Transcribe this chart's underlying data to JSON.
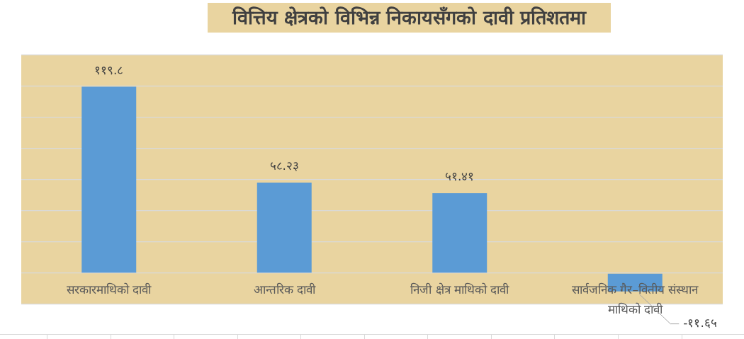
{
  "chart_data": {
    "type": "bar",
    "title": "वित्तिय क्षेत्रको विभिन्न निकायसँगको दावी प्रतिशतमा",
    "categories": [
      "सरकारमाथिको दावी",
      "आन्तरिक दावी",
      "निजी क्षेत्र माथिको दावी",
      "सार्वजनिक गैर–वितीय संस्थान माथिको दावी"
    ],
    "values": [
      119.8,
      58.23,
      51.41,
      -11.65
    ],
    "value_labels": [
      "११९.८",
      "५८.२३",
      "५१.४१",
      "-११.६५"
    ],
    "color": "#5b9bd5",
    "ylim": [
      -20,
      140
    ],
    "yticks": [
      {
        "value": -20,
        "label": null
      },
      {
        "value": 0,
        "label": null
      },
      {
        "value": 20,
        "label": null
      },
      {
        "value": 40,
        "label": null
      },
      {
        "value": 60,
        "label": null
      },
      {
        "value": 80,
        "label": null
      },
      {
        "value": 100,
        "label": null
      },
      {
        "value": 120,
        "label": null
      },
      {
        "value": 140,
        "label": null
      }
    ],
    "grid": "y",
    "tick_labels": "x"
  }
}
